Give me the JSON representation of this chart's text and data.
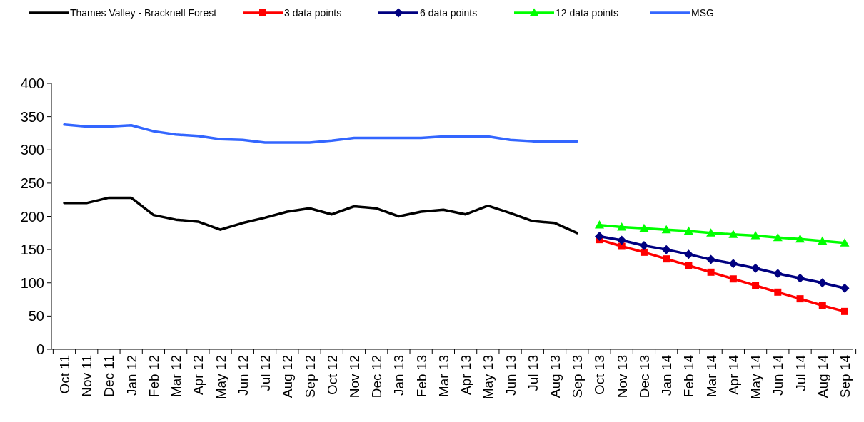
{
  "chart_data": {
    "type": "line",
    "categories": [
      "Oct 11",
      "Nov 11",
      "Dec 11",
      "Jan 12",
      "Feb 12",
      "Mar 12",
      "Apr 12",
      "May 12",
      "Jun 12",
      "Jul 12",
      "Aug 12",
      "Sep 12",
      "Oct 12",
      "Nov 12",
      "Dec 12",
      "Jan 13",
      "Feb 13",
      "Mar 13",
      "Apr 13",
      "May 13",
      "Jun 13",
      "Jul 13",
      "Aug 13",
      "Sep 13",
      "Oct 13",
      "Nov 13",
      "Dec 13",
      "Jan 14",
      "Feb 14",
      "Mar 14",
      "Apr 14",
      "May 14",
      "Jun 14",
      "Jul 14",
      "Aug 14",
      "Sep 14"
    ],
    "series": [
      {
        "name": "Thames Valley - Bracknell Forest",
        "color": "#000000",
        "marker": "none",
        "values": [
          220,
          220,
          228,
          228,
          202,
          195,
          192,
          180,
          190,
          198,
          207,
          212,
          203,
          215,
          212,
          200,
          207,
          210,
          203,
          216,
          205,
          193,
          190,
          175,
          null,
          null,
          null,
          null,
          null,
          null,
          null,
          null,
          null,
          null,
          null,
          null
        ]
      },
      {
        "name": "3 data points",
        "color": "#ff0000",
        "marker": "square",
        "values": [
          null,
          null,
          null,
          null,
          null,
          null,
          null,
          null,
          null,
          null,
          null,
          null,
          null,
          null,
          null,
          null,
          null,
          null,
          null,
          null,
          null,
          null,
          null,
          null,
          165,
          155,
          146,
          136,
          126,
          116,
          106,
          96,
          86,
          76,
          66,
          57
        ]
      },
      {
        "name": "6 data points",
        "color": "#000080",
        "marker": "diamond",
        "values": [
          null,
          null,
          null,
          null,
          null,
          null,
          null,
          null,
          null,
          null,
          null,
          null,
          null,
          null,
          null,
          null,
          null,
          null,
          null,
          null,
          null,
          null,
          null,
          null,
          170,
          164,
          156,
          150,
          143,
          135,
          129,
          122,
          114,
          107,
          100,
          92
        ]
      },
      {
        "name": "12 data points",
        "color": "#00ff00",
        "marker": "triangle",
        "values": [
          null,
          null,
          null,
          null,
          null,
          null,
          null,
          null,
          null,
          null,
          null,
          null,
          null,
          null,
          null,
          null,
          null,
          null,
          null,
          null,
          null,
          null,
          null,
          null,
          187,
          184,
          182,
          180,
          178,
          175,
          173,
          171,
          168,
          166,
          163,
          160
        ]
      },
      {
        "name": "MSG",
        "color": "#3366ff",
        "marker": "none",
        "values": [
          338,
          335,
          335,
          337,
          328,
          323,
          321,
          316,
          315,
          311,
          311,
          311,
          314,
          318,
          318,
          318,
          318,
          320,
          320,
          320,
          315,
          313,
          313,
          313,
          null,
          null,
          null,
          null,
          null,
          null,
          null,
          null,
          null,
          null,
          null,
          null
        ]
      }
    ],
    "ylim": [
      0,
      400
    ],
    "yticks": [
      0,
      50,
      100,
      150,
      200,
      250,
      300,
      350,
      400
    ],
    "grid": false,
    "legend": "top"
  }
}
